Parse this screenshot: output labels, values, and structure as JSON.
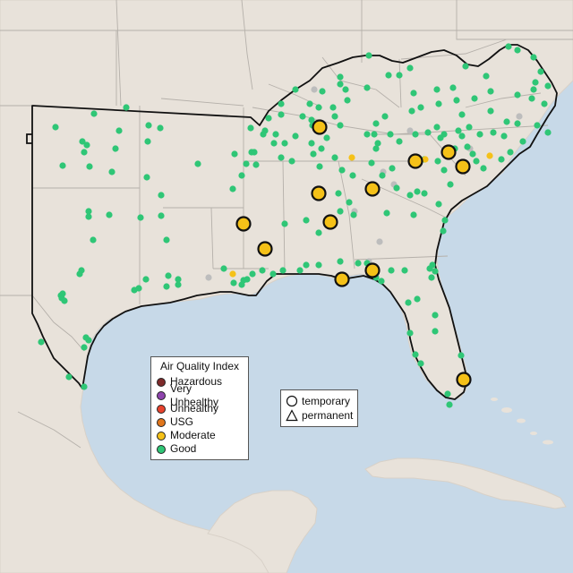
{
  "map": {
    "colors": {
      "water": "#c7d9e8",
      "land": "#e8e2da",
      "land_edge": "#d8d1c8",
      "borders": "#b5b0aa",
      "region_outline": "#111111"
    },
    "markers": {
      "good_color": "#2fc676",
      "moderate_color": "#f5c118",
      "nodata_color": "#bdbdbd",
      "outline_color": "#111111"
    },
    "monitor_counts": {
      "large_moderate": 16,
      "small_moderate": 4
    }
  },
  "aqi_legend": {
    "title": "Air Quality Index",
    "items": [
      {
        "name": "hazardous",
        "label": "Hazardous",
        "color": "#7e2b2b"
      },
      {
        "name": "very-unhealthy",
        "label": "Very Unhealthy",
        "color": "#8e44ad"
      },
      {
        "name": "unhealthy",
        "label": "Unhealthy",
        "color": "#e8432e"
      },
      {
        "name": "usg",
        "label": "USG",
        "color": "#e0761c"
      },
      {
        "name": "moderate",
        "label": "Moderate",
        "color": "#f5c118"
      },
      {
        "name": "good",
        "label": "Good",
        "color": "#2fc676"
      }
    ]
  },
  "shape_legend": {
    "items": [
      {
        "name": "temporary",
        "label": "temporary",
        "shape": "circle-icon"
      },
      {
        "name": "permanent",
        "label": "permanent",
        "shape": "triangle-icon"
      }
    ]
  }
}
